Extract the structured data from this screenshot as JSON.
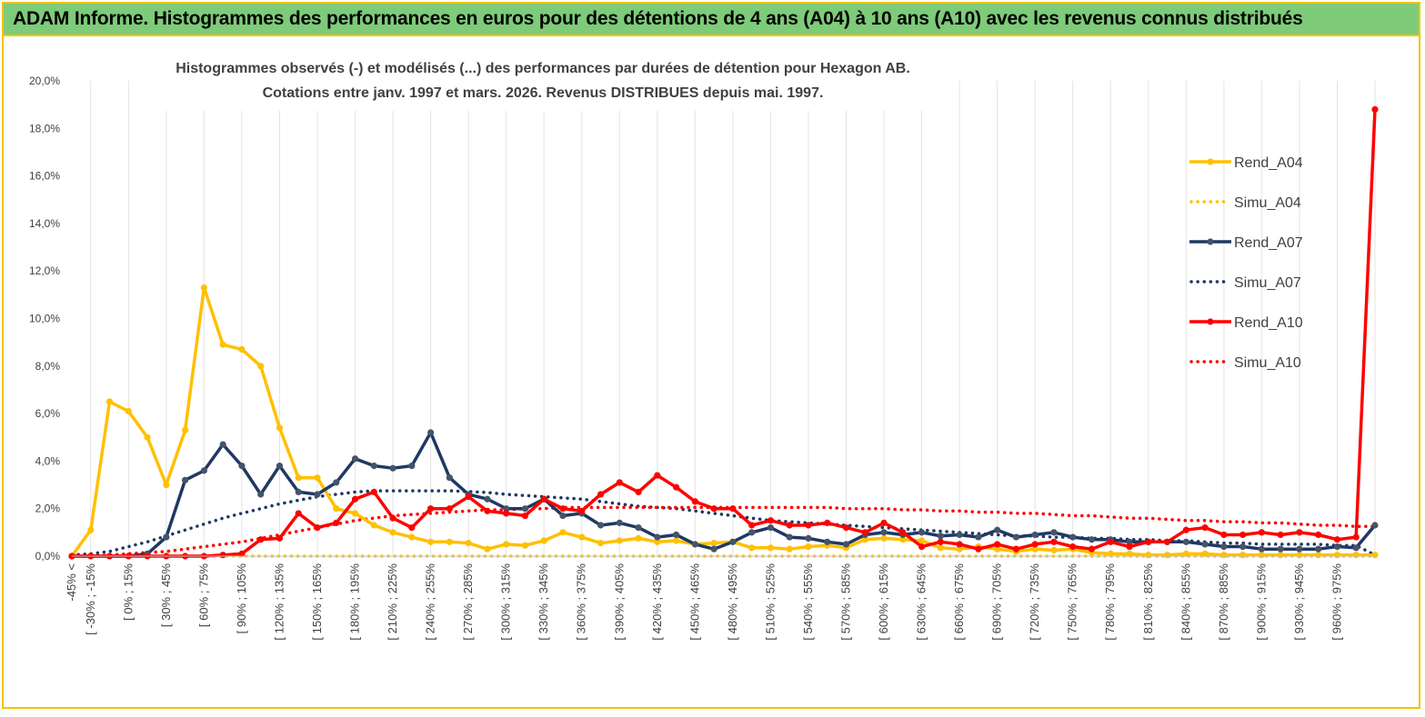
{
  "header": {
    "title": "ADAM Informe. Histogrammes des performances en euros pour des détentions de 4 ans (A04) à 10 ans (A10) avec les revenus connus distribués"
  },
  "chart_data": {
    "type": "line",
    "title": "Histogrammes observés (-) et modélisés (...) des performances par durées de détention pour Hexagon AB.",
    "subtitle": "Cotations entre janv. 1997 et mars. 2026. Revenus DISTRIBUES depuis mai. 1997.",
    "ylim": [
      0,
      20
    ],
    "yticks": [
      "0,0%",
      "2,0%",
      "4,0%",
      "6,0%",
      "8,0%",
      "10,0%",
      "12,0%",
      "14,0%",
      "16,0%",
      "18,0%",
      "20,0%"
    ],
    "xtick_labels": [
      "-45% <",
      "[ -30% ; -15%",
      "[ 0% ; 15%",
      "[ 30% ; 45%",
      "[ 60% ; 75%",
      "[ 90% ; 105%",
      "[ 120% ; 135%",
      "[ 150% ; 165%",
      "[ 180% ; 195%",
      "[ 210% ; 225%",
      "[ 240% ; 255%",
      "[ 270% ; 285%",
      "[ 300% ; 315%",
      "[ 330% ; 345%",
      "[ 360% ; 375%",
      "[ 390% ; 405%",
      "[ 420% ; 435%",
      "[ 450% ; 465%",
      "[ 480% ; 495%",
      "[ 510% ; 525%",
      "[ 540% ; 555%",
      "[ 570% ; 585%",
      "[ 600% ; 615%",
      "[ 630% ; 645%",
      "[ 660% ; 675%",
      "[ 690% ; 705%",
      "[ 720% ; 735%",
      "[ 750% ; 765%",
      "[ 780% ; 795%",
      "[ 810% ; 825%",
      "[ 840% ; 855%",
      "[ 870% ; 885%",
      "[ 900% ; 915%",
      "[ 930% ; 945%",
      "[ 960% ; 975%"
    ],
    "n_bins": 70,
    "series": [
      {
        "name": "Rend_A04",
        "style": "solid",
        "color": "#ffc000",
        "values": [
          0,
          1.1,
          6.5,
          6.1,
          5.0,
          3.0,
          5.3,
          11.3,
          8.9,
          8.7,
          8.0,
          5.4,
          3.3,
          3.3,
          2.0,
          1.8,
          1.3,
          1.0,
          0.8,
          0.6,
          0.6,
          0.55,
          0.3,
          0.5,
          0.45,
          0.65,
          1.0,
          0.8,
          0.55,
          0.65,
          0.75,
          0.6,
          0.65,
          0.5,
          0.55,
          0.6,
          0.35,
          0.35,
          0.3,
          0.4,
          0.45,
          0.35,
          0.7,
          0.75,
          0.7,
          0.65,
          0.35,
          0.3,
          0.4,
          0.3,
          0.2,
          0.3,
          0.25,
          0.3,
          0.15,
          0.1,
          0.1,
          0.05,
          0.05,
          0.1,
          0.1,
          0.05,
          0.05,
          0.05,
          0.05,
          0.05,
          0.05,
          0.05,
          0.05,
          0.05
        ]
      },
      {
        "name": "Simu_A04",
        "style": "dotted",
        "color": "#ffc000",
        "values": [
          0,
          0,
          0,
          0,
          0,
          0,
          0,
          0,
          0,
          0,
          0,
          0,
          0,
          0,
          0,
          0,
          0,
          0,
          0,
          0,
          0,
          0,
          0,
          0,
          0,
          0,
          0,
          0,
          0,
          0,
          0,
          0,
          0,
          0,
          0,
          0,
          0,
          0,
          0,
          0,
          0,
          0,
          0,
          0,
          0,
          0,
          0,
          0,
          0,
          0,
          0,
          0,
          0,
          0,
          0,
          0,
          0,
          0,
          0,
          0,
          0,
          0,
          0,
          0,
          0,
          0,
          0,
          0,
          0,
          0
        ]
      },
      {
        "name": "Rend_A07",
        "style": "solid",
        "color": "#1f3864",
        "values": [
          0,
          0,
          0,
          0,
          0.1,
          0.8,
          3.2,
          3.6,
          4.7,
          3.8,
          2.6,
          3.8,
          2.7,
          2.6,
          3.1,
          4.1,
          3.8,
          3.7,
          3.8,
          5.2,
          3.3,
          2.6,
          2.4,
          2.0,
          2.0,
          2.4,
          1.7,
          1.8,
          1.3,
          1.4,
          1.2,
          0.8,
          0.9,
          0.5,
          0.3,
          0.6,
          1.0,
          1.2,
          0.8,
          0.75,
          0.6,
          0.5,
          0.9,
          1.0,
          0.9,
          1.0,
          0.85,
          0.9,
          0.8,
          1.1,
          0.8,
          0.9,
          1.0,
          0.8,
          0.7,
          0.7,
          0.6,
          0.6,
          0.6,
          0.6,
          0.5,
          0.4,
          0.4,
          0.3,
          0.3,
          0.3,
          0.3,
          0.4,
          0.35,
          1.3
        ]
      },
      {
        "name": "Simu_A07",
        "style": "dotted",
        "color": "#1f3864",
        "values": [
          0.05,
          0.1,
          0.2,
          0.4,
          0.6,
          0.85,
          1.1,
          1.35,
          1.6,
          1.8,
          2.0,
          2.2,
          2.35,
          2.5,
          2.6,
          2.7,
          2.75,
          2.75,
          2.75,
          2.75,
          2.75,
          2.72,
          2.68,
          2.6,
          2.55,
          2.5,
          2.45,
          2.4,
          2.3,
          2.2,
          2.1,
          2.05,
          2.0,
          1.9,
          1.8,
          1.7,
          1.6,
          1.5,
          1.45,
          1.4,
          1.35,
          1.3,
          1.25,
          1.2,
          1.15,
          1.1,
          1.05,
          1.0,
          0.95,
          0.9,
          0.85,
          0.85,
          0.8,
          0.8,
          0.75,
          0.75,
          0.7,
          0.7,
          0.65,
          0.65,
          0.6,
          0.55,
          0.55,
          0.5,
          0.5,
          0.5,
          0.5,
          0.45,
          0.45,
          0.05
        ]
      },
      {
        "name": "Rend_A10",
        "style": "solid",
        "color": "#ff0000",
        "values": [
          0,
          0,
          0,
          0,
          0,
          0,
          0,
          0,
          0.05,
          0.1,
          0.7,
          0.75,
          1.8,
          1.2,
          1.4,
          2.4,
          2.7,
          1.6,
          1.2,
          2.0,
          2.0,
          2.5,
          1.9,
          1.8,
          1.7,
          2.4,
          2.0,
          1.9,
          2.6,
          3.1,
          2.7,
          3.4,
          2.9,
          2.3,
          2.0,
          2.0,
          1.3,
          1.5,
          1.3,
          1.3,
          1.4,
          1.2,
          1.0,
          1.4,
          1.0,
          0.4,
          0.6,
          0.5,
          0.3,
          0.5,
          0.3,
          0.5,
          0.6,
          0.4,
          0.3,
          0.6,
          0.4,
          0.6,
          0.6,
          1.1,
          1.2,
          0.9,
          0.9,
          1.0,
          0.9,
          1.0,
          0.9,
          0.7,
          0.8,
          18.8
        ]
      },
      {
        "name": "Simu_A10",
        "style": "dotted",
        "color": "#ff0000",
        "values": [
          0,
          0,
          0.05,
          0.1,
          0.15,
          0.2,
          0.3,
          0.4,
          0.5,
          0.6,
          0.75,
          0.9,
          1.05,
          1.2,
          1.35,
          1.5,
          1.6,
          1.7,
          1.75,
          1.8,
          1.85,
          1.9,
          1.95,
          1.95,
          2.0,
          2.0,
          2.05,
          2.05,
          2.05,
          2.05,
          2.05,
          2.05,
          2.05,
          2.05,
          2.05,
          2.05,
          2.05,
          2.05,
          2.05,
          2.05,
          2.05,
          2.0,
          2.0,
          2.0,
          1.95,
          1.95,
          1.9,
          1.9,
          1.85,
          1.85,
          1.8,
          1.8,
          1.75,
          1.7,
          1.7,
          1.65,
          1.6,
          1.6,
          1.55,
          1.5,
          1.5,
          1.45,
          1.45,
          1.4,
          1.4,
          1.35,
          1.3,
          1.3,
          1.25,
          1.25
        ]
      }
    ],
    "legend_position": "right"
  }
}
